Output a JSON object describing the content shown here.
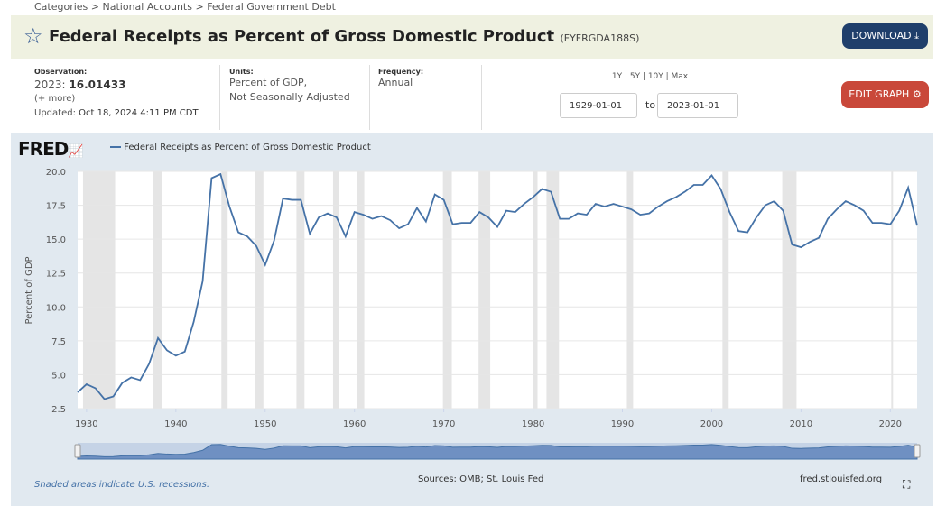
{
  "breadcrumb": "Categories > National Accounts > Federal Government Debt",
  "title": "Federal Receipts as Percent of Gross Domestic Product",
  "series_id": "(FYFRGDA188S)",
  "download": "DOWNLOAD",
  "observation": {
    "label": "Observation:",
    "date": "2023:",
    "value": "16.01433",
    "more": "(+ more)",
    "updated_label": "Updated:",
    "updated": "Oct 18, 2024 4:11 PM CDT"
  },
  "units": {
    "label": "Units:",
    "line1": "Percent of GDP,",
    "line2": "Not Seasonally Adjusted"
  },
  "frequency": {
    "label": "Frequency:",
    "value": "Annual"
  },
  "ranges": "1Y | 5Y | 10Y | Max",
  "start_date": "1929-01-01",
  "to": "to",
  "end_date": "2023-01-01",
  "edit_graph": "EDIT GRAPH",
  "fred_logo": "FRED",
  "legend": "Federal Receipts as Percent of Gross Domestic Product",
  "footer": {
    "recession_note": "Shaded areas indicate U.S. recessions.",
    "sources": "Sources: OMB; St. Louis Fed",
    "site": "fred.stlouisfed.org"
  },
  "colors": {
    "line": "#4572a7",
    "recession": "#e5e5e5",
    "button": "#1f3f6b",
    "edit": "#c9483a"
  },
  "chart_data": {
    "type": "line",
    "ylabel": "Percent of GDP",
    "ylim": [
      2.5,
      20
    ],
    "yticks": [
      "2.5",
      "5.0",
      "7.5",
      "10.0",
      "12.5",
      "15.0",
      "17.5",
      "20.0"
    ],
    "xticks": [
      "1930",
      "1940",
      "1950",
      "1960",
      "1970",
      "1980",
      "1990",
      "2000",
      "2010",
      "2020"
    ],
    "xlim": [
      1929,
      2023
    ],
    "grid": true,
    "x": [
      1929,
      1930,
      1931,
      1932,
      1933,
      1934,
      1935,
      1936,
      1937,
      1938,
      1939,
      1940,
      1941,
      1942,
      1943,
      1944,
      1945,
      1946,
      1947,
      1948,
      1949,
      1950,
      1951,
      1952,
      1953,
      1954,
      1955,
      1956,
      1957,
      1958,
      1959,
      1960,
      1961,
      1962,
      1963,
      1964,
      1965,
      1966,
      1967,
      1968,
      1969,
      1970,
      1971,
      1972,
      1973,
      1974,
      1975,
      1976,
      1977,
      1978,
      1979,
      1980,
      1981,
      1982,
      1983,
      1984,
      1985,
      1986,
      1987,
      1988,
      1989,
      1990,
      1991,
      1992,
      1993,
      1994,
      1995,
      1996,
      1997,
      1998,
      1999,
      2000,
      2001,
      2002,
      2003,
      2004,
      2005,
      2006,
      2007,
      2008,
      2009,
      2010,
      2011,
      2012,
      2013,
      2014,
      2015,
      2016,
      2017,
      2018,
      2019,
      2020,
      2021,
      2022,
      2023
    ],
    "values": [
      3.7,
      4.3,
      4.0,
      3.2,
      3.4,
      4.4,
      4.8,
      4.6,
      5.8,
      7.7,
      6.8,
      6.4,
      6.7,
      8.9,
      11.9,
      19.5,
      19.8,
      17.4,
      15.5,
      15.2,
      14.5,
      13.1,
      14.9,
      18.0,
      17.9,
      17.9,
      15.4,
      16.6,
      16.9,
      16.6,
      15.2,
      17.0,
      16.8,
      16.5,
      16.7,
      16.4,
      15.8,
      16.1,
      17.3,
      16.3,
      18.3,
      17.9,
      16.1,
      16.2,
      16.2,
      17.0,
      16.6,
      15.9,
      17.1,
      17.0,
      17.6,
      18.1,
      18.7,
      18.5,
      16.5,
      16.5,
      16.9,
      16.8,
      17.6,
      17.4,
      17.6,
      17.4,
      17.2,
      16.8,
      16.9,
      17.4,
      17.8,
      18.1,
      18.5,
      19.0,
      19.0,
      19.7,
      18.7,
      17.0,
      15.6,
      15.5,
      16.6,
      17.5,
      17.8,
      17.1,
      14.6,
      14.4,
      14.8,
      15.1,
      16.5,
      17.2,
      17.8,
      17.5,
      17.1,
      16.2,
      16.2,
      16.1,
      17.1,
      18.8,
      16.0
    ],
    "recessions": [
      [
        1929.6,
        1933.2
      ],
      [
        1937.4,
        1938.5
      ],
      [
        1945.1,
        1945.8
      ],
      [
        1948.9,
        1949.8
      ],
      [
        1953.5,
        1954.4
      ],
      [
        1957.6,
        1958.3
      ],
      [
        1960.3,
        1961.1
      ],
      [
        1969.9,
        1970.9
      ],
      [
        1973.9,
        1975.2
      ],
      [
        1980.0,
        1980.5
      ],
      [
        1981.5,
        1982.9
      ],
      [
        1990.5,
        1991.2
      ],
      [
        2001.2,
        2001.9
      ],
      [
        2007.9,
        2009.5
      ],
      [
        2020.1,
        2020.3
      ]
    ]
  }
}
